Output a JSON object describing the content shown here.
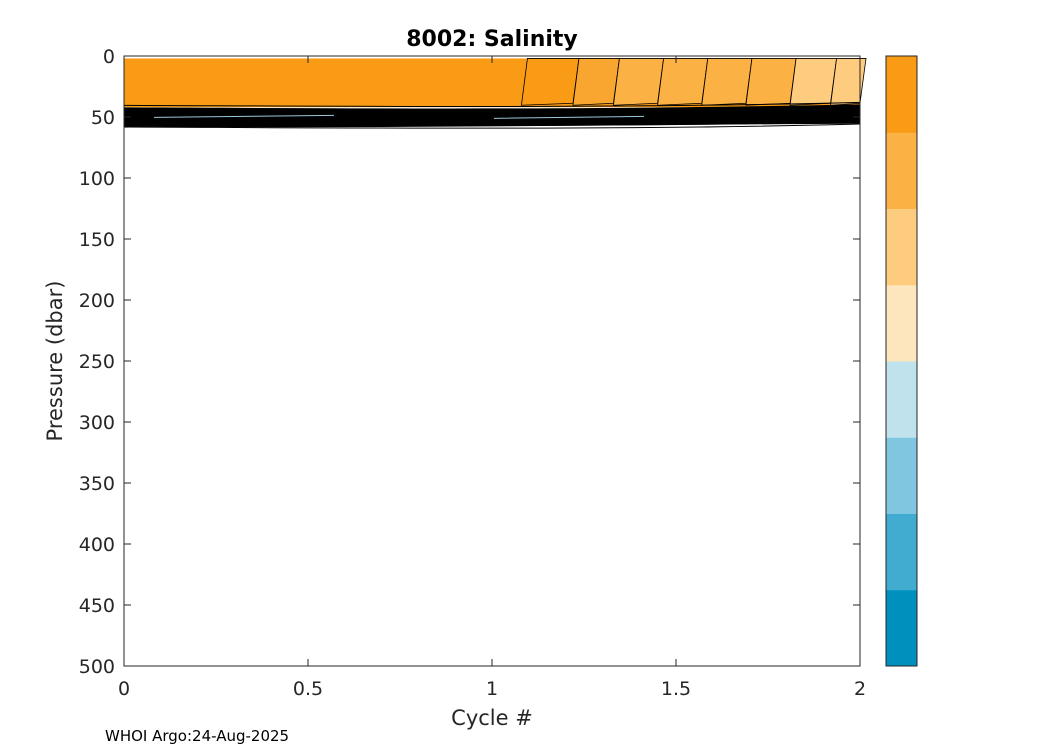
{
  "chart_data": {
    "type": "contour",
    "title": "8002:  Salinity",
    "xlabel": "Cycle #",
    "ylabel": "Pressure (dbar)",
    "xlim": [
      0,
      2
    ],
    "ylim": [
      0,
      500
    ],
    "y_reversed": true,
    "x_ticks": [
      0,
      0.5,
      1,
      1.5,
      2
    ],
    "x_tick_labels": [
      "0",
      "0.5",
      "1",
      "1.5",
      "2"
    ],
    "y_ticks": [
      0,
      50,
      100,
      150,
      200,
      250,
      300,
      350,
      400,
      450,
      500
    ],
    "y_tick_labels": [
      "0",
      "50",
      "100",
      "150",
      "200",
      "250",
      "300",
      "350",
      "400",
      "450",
      "500"
    ],
    "surface_layer": {
      "pressure_top": 2,
      "pressure_bottom": 42,
      "fill_color": "#f99b14",
      "lighter_bands": [
        {
          "x_start": 1.08,
          "x_end": 1.22,
          "color": "#f99b14"
        },
        {
          "x_start": 1.22,
          "x_end": 1.33,
          "color": "#f9a630"
        },
        {
          "x_start": 1.33,
          "x_end": 1.45,
          "color": "#fbb144"
        },
        {
          "x_start": 1.45,
          "x_end": 1.57,
          "color": "#fbb144"
        },
        {
          "x_start": 1.57,
          "x_end": 1.69,
          "color": "#fbb144"
        },
        {
          "x_start": 1.69,
          "x_end": 1.81,
          "color": "#fbb144"
        },
        {
          "x_start": 1.81,
          "x_end": 1.92,
          "color": "#fdcc7e"
        },
        {
          "x_start": 1.92,
          "x_end": 2.0,
          "color": "#fdcc7e"
        }
      ]
    },
    "contour_lines_pressure_range": [
      38,
      58
    ],
    "colorbar": {
      "colors": [
        "#0090be",
        "#41abd0",
        "#80c6e0",
        "#c0e2ec",
        "#fde5bd",
        "#fdcc7e",
        "#fbb144",
        "#f99b14"
      ]
    }
  },
  "footer": {
    "text": "WHOI Argo:24-Aug-2025"
  }
}
